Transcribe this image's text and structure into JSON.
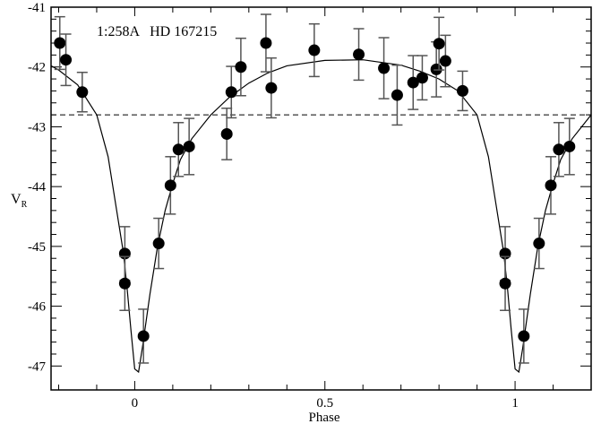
{
  "chart_data": {
    "type": "scatter",
    "title": "1:258A   HD 167215",
    "xlabel": "Phase",
    "ylabel": "V",
    "ylabel_subscript": "R",
    "xlim": [
      -0.22,
      1.2
    ],
    "ylim": [
      -47.4,
      -41
    ],
    "x_ticks": [
      {
        "v": 0,
        "label": "0"
      },
      {
        "v": 0.5,
        "label": "0.5"
      },
      {
        "v": 1,
        "label": "1"
      }
    ],
    "y_ticks": [
      {
        "v": -41,
        "label": "-41"
      },
      {
        "v": -42,
        "label": "-42"
      },
      {
        "v": -43,
        "label": "-43"
      },
      {
        "v": -44,
        "label": "-44"
      },
      {
        "v": -45,
        "label": "-45"
      },
      {
        "v": -46,
        "label": "-46"
      },
      {
        "v": -47,
        "label": "-47"
      }
    ],
    "grid": false,
    "reference_line": {
      "y": -42.8,
      "style": "dashed"
    },
    "points": [
      {
        "x": -0.197,
        "y": -41.6,
        "err": 0.44
      },
      {
        "x": -0.181,
        "y": -41.88,
        "err": 0.43
      },
      {
        "x": -0.138,
        "y": -42.42,
        "err": 0.33
      },
      {
        "x": -0.026,
        "y": -45.12,
        "err": 0.45
      },
      {
        "x": -0.026,
        "y": -45.62,
        "err": 0.45
      },
      {
        "x": 0.023,
        "y": -46.5,
        "err": 0.45
      },
      {
        "x": 0.063,
        "y": -44.95,
        "err": 0.42
      },
      {
        "x": 0.094,
        "y": -43.98,
        "err": 0.48
      },
      {
        "x": 0.115,
        "y": -43.38,
        "err": 0.45
      },
      {
        "x": 0.143,
        "y": -43.33,
        "err": 0.47
      },
      {
        "x": 0.242,
        "y": -43.12,
        "err": 0.43
      },
      {
        "x": 0.254,
        "y": -42.42,
        "err": 0.43
      },
      {
        "x": 0.279,
        "y": -42.0,
        "err": 0.48
      },
      {
        "x": 0.345,
        "y": -41.6,
        "err": 0.48
      },
      {
        "x": 0.359,
        "y": -42.35,
        "err": 0.5
      },
      {
        "x": 0.472,
        "y": -41.72,
        "err": 0.44
      },
      {
        "x": 0.589,
        "y": -41.79,
        "err": 0.43
      },
      {
        "x": 0.655,
        "y": -42.02,
        "err": 0.51
      },
      {
        "x": 0.69,
        "y": -42.47,
        "err": 0.5
      },
      {
        "x": 0.732,
        "y": -42.26,
        "err": 0.45
      },
      {
        "x": 0.756,
        "y": -42.18,
        "err": 0.37
      },
      {
        "x": 0.793,
        "y": -42.04,
        "err": 0.46
      },
      {
        "x": 0.8,
        "y": -41.61,
        "err": 0.44
      },
      {
        "x": 0.817,
        "y": -41.9,
        "err": 0.43
      },
      {
        "x": 0.862,
        "y": -42.4,
        "err": 0.33
      },
      {
        "x": 0.974,
        "y": -45.12,
        "err": 0.45
      },
      {
        "x": 0.974,
        "y": -45.62,
        "err": 0.45
      },
      {
        "x": 1.023,
        "y": -46.5,
        "err": 0.45
      },
      {
        "x": 1.063,
        "y": -44.95,
        "err": 0.42
      },
      {
        "x": 1.094,
        "y": -43.98,
        "err": 0.48
      },
      {
        "x": 1.115,
        "y": -43.38,
        "err": 0.45
      },
      {
        "x": 1.143,
        "y": -43.33,
        "err": 0.47
      }
    ],
    "fit_curve": [
      [
        -0.22,
        -41.98
      ],
      [
        -0.2,
        -42.05
      ],
      [
        -0.15,
        -42.3
      ],
      [
        -0.1,
        -42.8
      ],
      [
        -0.07,
        -43.5
      ],
      [
        -0.05,
        -44.3
      ],
      [
        -0.03,
        -45.1
      ],
      [
        -0.02,
        -45.7
      ],
      [
        -0.01,
        -46.4
      ],
      [
        0.0,
        -47.05
      ],
      [
        0.01,
        -47.1
      ],
      [
        0.02,
        -46.7
      ],
      [
        0.04,
        -45.8
      ],
      [
        0.06,
        -45.0
      ],
      [
        0.08,
        -44.4
      ],
      [
        0.1,
        -43.95
      ],
      [
        0.12,
        -43.55
      ],
      [
        0.15,
        -43.2
      ],
      [
        0.2,
        -42.8
      ],
      [
        0.25,
        -42.5
      ],
      [
        0.3,
        -42.27
      ],
      [
        0.35,
        -42.1
      ],
      [
        0.4,
        -41.98
      ],
      [
        0.5,
        -41.89
      ],
      [
        0.6,
        -41.88
      ],
      [
        0.7,
        -41.97
      ],
      [
        0.75,
        -42.07
      ],
      [
        0.8,
        -42.2
      ],
      [
        0.85,
        -42.4
      ],
      [
        0.9,
        -42.8
      ],
      [
        0.93,
        -43.5
      ],
      [
        0.95,
        -44.3
      ],
      [
        0.97,
        -45.1
      ],
      [
        0.98,
        -45.7
      ],
      [
        0.99,
        -46.4
      ],
      [
        1.0,
        -47.05
      ],
      [
        1.01,
        -47.1
      ],
      [
        1.02,
        -46.7
      ],
      [
        1.04,
        -45.8
      ],
      [
        1.06,
        -45.0
      ],
      [
        1.08,
        -44.4
      ],
      [
        1.1,
        -43.95
      ],
      [
        1.12,
        -43.55
      ],
      [
        1.15,
        -43.2
      ],
      [
        1.2,
        -42.8
      ]
    ],
    "colors": {
      "points": "#000000",
      "error_bars": "#555555",
      "curve": "#000000"
    }
  }
}
